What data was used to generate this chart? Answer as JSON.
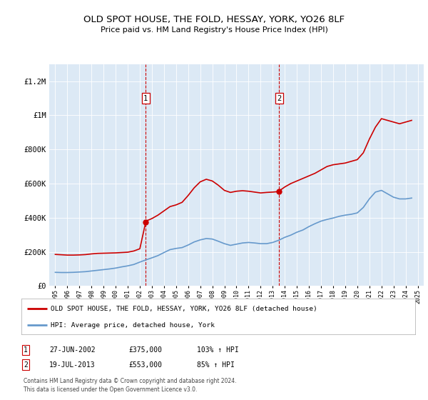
{
  "title": "OLD SPOT HOUSE, THE FOLD, HESSAY, YORK, YO26 8LF",
  "subtitle": "Price paid vs. HM Land Registry's House Price Index (HPI)",
  "plot_bg_color": "#dce9f5",
  "legend_label_red": "OLD SPOT HOUSE, THE FOLD, HESSAY, YORK, YO26 8LF (detached house)",
  "legend_label_blue": "HPI: Average price, detached house, York",
  "sale1_label": "1",
  "sale1_date": "27-JUN-2002",
  "sale1_price": "£375,000",
  "sale1_hpi": "103% ↑ HPI",
  "sale1_year": 2002.49,
  "sale1_value": 375000,
  "sale2_label": "2",
  "sale2_date": "19-JUL-2013",
  "sale2_price": "£553,000",
  "sale2_hpi": "85% ↑ HPI",
  "sale2_year": 2013.54,
  "sale2_value": 553000,
  "footer": "Contains HM Land Registry data © Crown copyright and database right 2024.\nThis data is licensed under the Open Government Licence v3.0.",
  "ylim": [
    0,
    1300000
  ],
  "xlim_start": 1994.5,
  "xlim_end": 2025.5,
  "red_line_color": "#cc0000",
  "blue_line_color": "#6699cc",
  "red_years": [
    1995.0,
    1995.5,
    1996.0,
    1996.5,
    1997.0,
    1997.5,
    1998.0,
    1998.5,
    1999.0,
    1999.5,
    2000.0,
    2000.5,
    2001.0,
    2001.5,
    2002.0,
    2002.49,
    2002.5,
    2003.0,
    2003.5,
    2004.0,
    2004.5,
    2005.0,
    2005.5,
    2006.0,
    2006.5,
    2007.0,
    2007.5,
    2008.0,
    2008.5,
    2009.0,
    2009.5,
    2010.0,
    2010.5,
    2011.0,
    2011.5,
    2012.0,
    2012.5,
    2013.0,
    2013.49,
    2013.54,
    2013.5,
    2014.0,
    2014.5,
    2015.0,
    2015.5,
    2016.0,
    2016.5,
    2017.0,
    2017.5,
    2018.0,
    2018.5,
    2019.0,
    2019.5,
    2020.0,
    2020.5,
    2021.0,
    2021.5,
    2022.0,
    2022.5,
    2023.0,
    2023.5,
    2024.0,
    2024.5
  ],
  "red_values": [
    185000,
    183000,
    181000,
    181000,
    182000,
    184000,
    188000,
    191000,
    192000,
    193000,
    194000,
    196000,
    198000,
    205000,
    218000,
    375000,
    380000,
    395000,
    415000,
    440000,
    465000,
    475000,
    490000,
    530000,
    575000,
    610000,
    625000,
    615000,
    590000,
    560000,
    548000,
    555000,
    558000,
    555000,
    550000,
    545000,
    548000,
    550000,
    553000,
    553000,
    555000,
    580000,
    600000,
    615000,
    630000,
    645000,
    660000,
    680000,
    700000,
    710000,
    715000,
    720000,
    730000,
    740000,
    780000,
    860000,
    930000,
    980000,
    970000,
    960000,
    950000,
    960000,
    970000
  ],
  "blue_years": [
    1995.0,
    1995.5,
    1996.0,
    1996.5,
    1997.0,
    1997.5,
    1998.0,
    1998.5,
    1999.0,
    1999.5,
    2000.0,
    2000.5,
    2001.0,
    2001.5,
    2002.0,
    2002.5,
    2003.0,
    2003.5,
    2004.0,
    2004.5,
    2005.0,
    2005.5,
    2006.0,
    2006.5,
    2007.0,
    2007.5,
    2008.0,
    2008.5,
    2009.0,
    2009.5,
    2010.0,
    2010.5,
    2011.0,
    2011.5,
    2012.0,
    2012.5,
    2013.0,
    2013.5,
    2014.0,
    2014.5,
    2015.0,
    2015.5,
    2016.0,
    2016.5,
    2017.0,
    2017.5,
    2018.0,
    2018.5,
    2019.0,
    2019.5,
    2020.0,
    2020.5,
    2021.0,
    2021.5,
    2022.0,
    2022.5,
    2023.0,
    2023.5,
    2024.0,
    2024.5
  ],
  "blue_values": [
    80000,
    79000,
    79000,
    80000,
    82000,
    84000,
    88000,
    92000,
    96000,
    100000,
    105000,
    112000,
    118000,
    126000,
    140000,
    153000,
    165000,
    178000,
    196000,
    213000,
    220000,
    225000,
    240000,
    258000,
    270000,
    278000,
    275000,
    262000,
    248000,
    238000,
    245000,
    252000,
    255000,
    252000,
    248000,
    248000,
    255000,
    268000,
    285000,
    298000,
    315000,
    328000,
    348000,
    365000,
    380000,
    390000,
    398000,
    408000,
    415000,
    420000,
    428000,
    460000,
    510000,
    550000,
    560000,
    540000,
    520000,
    510000,
    510000,
    515000
  ]
}
